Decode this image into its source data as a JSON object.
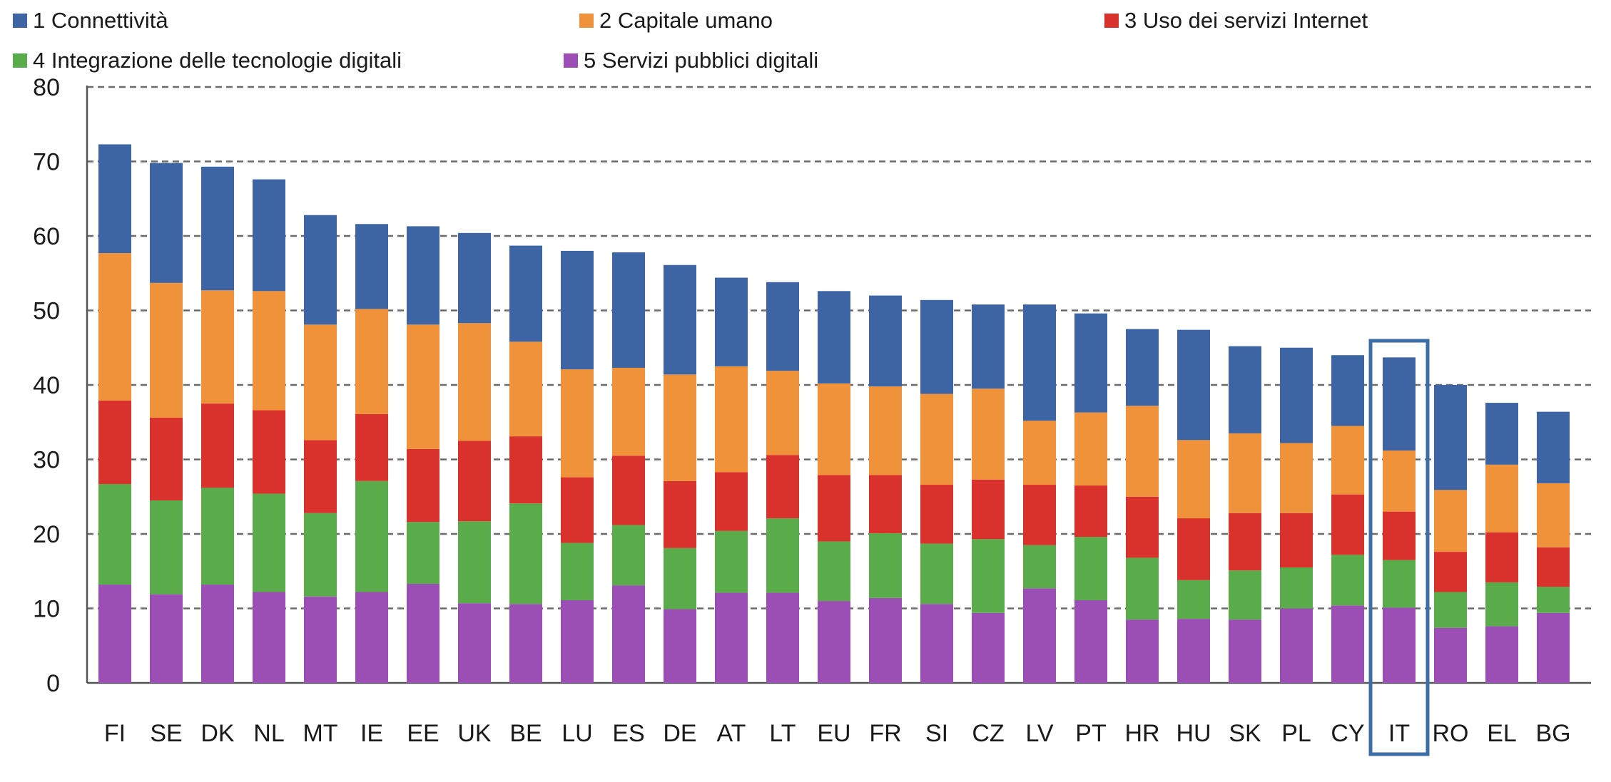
{
  "chart_data": {
    "type": "bar",
    "stacked": true,
    "title": "",
    "xlabel": "",
    "ylabel": "",
    "ylim": [
      0,
      80
    ],
    "yticks": [
      0,
      10,
      20,
      30,
      40,
      50,
      60,
      70,
      80
    ],
    "grid": "horizontal dashed",
    "legend_placement": "top",
    "highlighted_category": "IT",
    "categories": [
      "FI",
      "SE",
      "DK",
      "NL",
      "MT",
      "IE",
      "EE",
      "UK",
      "BE",
      "LU",
      "ES",
      "DE",
      "AT",
      "LT",
      "EU",
      "FR",
      "SI",
      "CZ",
      "LV",
      "PT",
      "HR",
      "HU",
      "SK",
      "PL",
      "CY",
      "IT",
      "RO",
      "EL",
      "BG"
    ],
    "series": [
      {
        "name": "5 Servizi pubblici digitali",
        "color": "#9b4fb5",
        "values": [
          13.2,
          11.9,
          13.2,
          12.2,
          11.6,
          12.2,
          13.3,
          10.7,
          10.6,
          11.1,
          13.1,
          9.9,
          12.1,
          12.1,
          11.0,
          11.4,
          10.6,
          9.4,
          12.7,
          11.1,
          8.5,
          8.6,
          8.5,
          10.0,
          10.4,
          10.1,
          7.4,
          7.6,
          9.4
        ]
      },
      {
        "name": "4 Integrazione delle tecnologie digitali",
        "color": "#5aab4a",
        "values": [
          13.5,
          12.6,
          13.0,
          13.2,
          11.2,
          14.9,
          8.3,
          11.0,
          13.5,
          7.7,
          8.1,
          8.2,
          8.3,
          10.0,
          8.0,
          8.7,
          8.1,
          9.9,
          5.8,
          8.5,
          8.3,
          5.2,
          6.6,
          5.5,
          6.8,
          6.4,
          4.8,
          5.9,
          3.5
        ]
      },
      {
        "name": "3 Uso dei servizi Internet",
        "color": "#d9312b",
        "values": [
          11.2,
          11.1,
          11.3,
          11.2,
          9.8,
          9.0,
          9.8,
          10.8,
          9.0,
          8.8,
          9.3,
          9.0,
          7.9,
          8.5,
          8.9,
          7.8,
          7.9,
          8.0,
          8.1,
          6.9,
          8.2,
          8.3,
          7.7,
          7.3,
          8.1,
          6.5,
          5.4,
          6.7,
          5.3
        ]
      },
      {
        "name": "2 Capitale umano",
        "color": "#f0923a",
        "values": [
          19.8,
          18.1,
          15.2,
          16.0,
          15.5,
          14.1,
          16.7,
          15.8,
          12.7,
          14.5,
          11.8,
          14.3,
          14.2,
          11.3,
          12.3,
          11.9,
          12.2,
          12.2,
          8.6,
          9.8,
          12.2,
          10.5,
          10.7,
          9.4,
          9.2,
          8.2,
          8.3,
          9.1,
          8.6
        ]
      },
      {
        "name": "1 Connettività",
        "color": "#3d65a3",
        "values": [
          14.6,
          16.1,
          16.6,
          15.0,
          14.7,
          11.4,
          13.2,
          12.1,
          12.9,
          15.9,
          15.5,
          14.7,
          11.9,
          11.9,
          12.4,
          12.2,
          12.6,
          11.3,
          15.6,
          13.3,
          10.3,
          14.8,
          11.7,
          12.8,
          9.5,
          12.5,
          14.1,
          8.3,
          9.6
        ]
      }
    ]
  }
}
